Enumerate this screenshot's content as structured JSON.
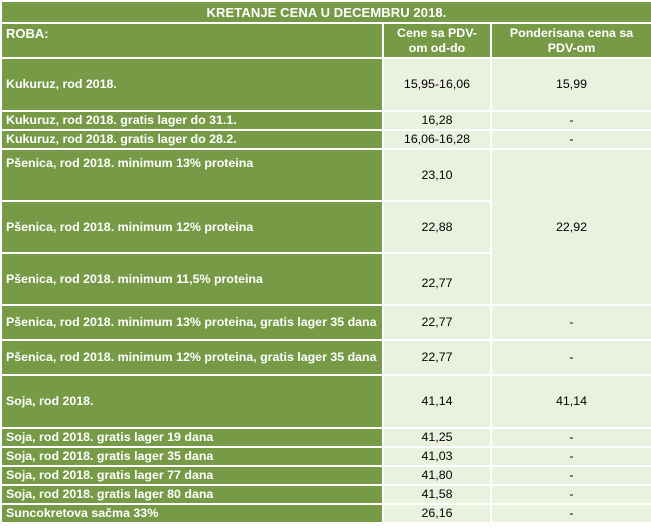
{
  "table": {
    "title": "KRETANJE CENA U DECEMBRU 2018.",
    "headers": {
      "roba": "ROBA:",
      "cene": "Cene sa PDV-om od-do",
      "ponder": "Ponderisana cena sa PDV-om"
    },
    "rows": [
      {
        "label": "Kukuruz, rod 2018.",
        "price": "15,95-16,06",
        "weighted": "15,99"
      },
      {
        "label": "Kukuruz, rod 2018. gratis lager do 31.1.",
        "price": "16,28",
        "weighted": "-"
      },
      {
        "label": "Kukuruz, rod 2018. gratis lager do 28.2.",
        "price": "16,06-16,28",
        "weighted": "-"
      },
      {
        "label": "Pšenica, rod 2018. minimum 13% proteina",
        "price": "23,10",
        "weighted": "22,92"
      },
      {
        "label": "Pšenica, rod 2018. minimum 12% proteina",
        "price": "22,88"
      },
      {
        "label": "Pšenica, rod 2018. minimum 11,5% proteina",
        "price": "22,77"
      },
      {
        "label": "Pšenica, rod 2018. minimum 13% proteina, gratis lager 35 dana",
        "price": "22,77",
        "weighted": "-"
      },
      {
        "label": "Pšenica, rod 2018. minimum 12% proteina, gratis lager 35 dana",
        "price": "22,77",
        "weighted": "-"
      },
      {
        "label": "Soja, rod 2018.",
        "price": "41,14",
        "weighted": "41,14"
      },
      {
        "label": "Soja, rod 2018. gratis lager 19 dana",
        "price": "41,25",
        "weighted": "-"
      },
      {
        "label": "Soja, rod 2018. gratis lager 35 dana",
        "price": "41,03",
        "weighted": "-"
      },
      {
        "label": "Soja, rod 2018. gratis lager 77 dana",
        "price": "41,80",
        "weighted": "-"
      },
      {
        "label": "Soja, rod 2018. gratis lager 80 dana",
        "price": "41,58",
        "weighted": "-"
      },
      {
        "label": "Suncokretova sačma 33%",
        "price": "26,16",
        "weighted": "-"
      }
    ]
  },
  "colors": {
    "header_green": "#779a47",
    "cell_light": "#ebf1df",
    "border": "#ffffff"
  }
}
